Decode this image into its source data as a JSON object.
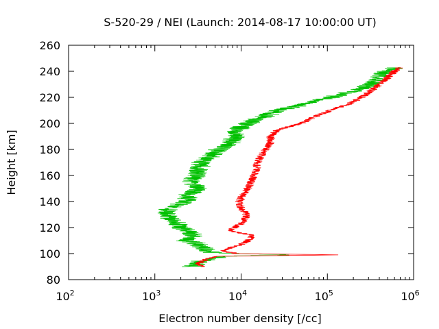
{
  "chart_data": {
    "type": "line",
    "title": "S-520-29 / NEI (Launch: 2014-08-17 10:00:00 UT)",
    "xlabel": "Electron number density [/cc]",
    "ylabel": "Height [km]",
    "x_scale": "log",
    "xlim": [
      100,
      1000000
    ],
    "ylim": [
      80,
      260
    ],
    "x_ticks": [
      {
        "base": "10",
        "exp": "2",
        "value": 100
      },
      {
        "base": "10",
        "exp": "3",
        "value": 1000
      },
      {
        "base": "10",
        "exp": "4",
        "value": 10000
      },
      {
        "base": "10",
        "exp": "5",
        "value": 100000
      },
      {
        "base": "10",
        "exp": "6",
        "value": 1000000
      }
    ],
    "y_ticks": [
      "80",
      "100",
      "120",
      "140",
      "160",
      "180",
      "200",
      "220",
      "240",
      "260"
    ],
    "grid": false,
    "legend": "none",
    "series": [
      {
        "color": "#00c000",
        "jitter": 0.12,
        "profile": [
          [
            90,
            2700
          ],
          [
            92,
            3000
          ],
          [
            94,
            3300
          ],
          [
            96,
            4200
          ],
          [
            98,
            6500
          ],
          [
            99,
            40000
          ],
          [
            100,
            9000
          ],
          [
            101,
            4500
          ],
          [
            103,
            4000
          ],
          [
            105,
            3500
          ],
          [
            108,
            3000
          ],
          [
            110,
            2200
          ],
          [
            112,
            2600
          ],
          [
            115,
            2800
          ],
          [
            118,
            2300
          ],
          [
            120,
            2000
          ],
          [
            125,
            1700
          ],
          [
            130,
            1300
          ],
          [
            135,
            1500
          ],
          [
            140,
            2300
          ],
          [
            145,
            2400
          ],
          [
            150,
            3200
          ],
          [
            155,
            2600
          ],
          [
            160,
            3000
          ],
          [
            165,
            3300
          ],
          [
            170,
            3500
          ],
          [
            175,
            4500
          ],
          [
            180,
            5500
          ],
          [
            185,
            7500
          ],
          [
            190,
            8500
          ],
          [
            195,
            9000
          ],
          [
            200,
            12000
          ],
          [
            205,
            18000
          ],
          [
            210,
            28000
          ],
          [
            215,
            55000
          ],
          [
            220,
            110000
          ],
          [
            225,
            200000
          ],
          [
            230,
            320000
          ],
          [
            235,
            400000
          ],
          [
            240,
            480000
          ],
          [
            243,
            650000
          ]
        ]
      },
      {
        "color": "#ff0000",
        "jitter": 0.05,
        "profile": [
          [
            90,
            3800
          ],
          [
            92,
            3200
          ],
          [
            94,
            3500
          ],
          [
            96,
            4000
          ],
          [
            98,
            5500
          ],
          [
            99,
            150000
          ],
          [
            100,
            9000
          ],
          [
            102,
            6000
          ],
          [
            105,
            8000
          ],
          [
            108,
            11000
          ],
          [
            110,
            12000
          ],
          [
            112,
            13000
          ],
          [
            114,
            14000
          ],
          [
            116,
            9500
          ],
          [
            118,
            7000
          ],
          [
            120,
            8500
          ],
          [
            125,
            11000
          ],
          [
            130,
            11500
          ],
          [
            135,
            10000
          ],
          [
            140,
            9500
          ],
          [
            145,
            10500
          ],
          [
            150,
            12000
          ],
          [
            155,
            13000
          ],
          [
            160,
            14000
          ],
          [
            165,
            15000
          ],
          [
            170,
            15500
          ],
          [
            175,
            17000
          ],
          [
            180,
            19000
          ],
          [
            185,
            22000
          ],
          [
            190,
            22000
          ],
          [
            195,
            26000
          ],
          [
            200,
            50000
          ],
          [
            205,
            70000
          ],
          [
            210,
            110000
          ],
          [
            215,
            180000
          ],
          [
            220,
            250000
          ],
          [
            225,
            320000
          ],
          [
            230,
            400000
          ],
          [
            235,
            500000
          ],
          [
            240,
            600000
          ],
          [
            243,
            700000
          ]
        ]
      }
    ]
  }
}
